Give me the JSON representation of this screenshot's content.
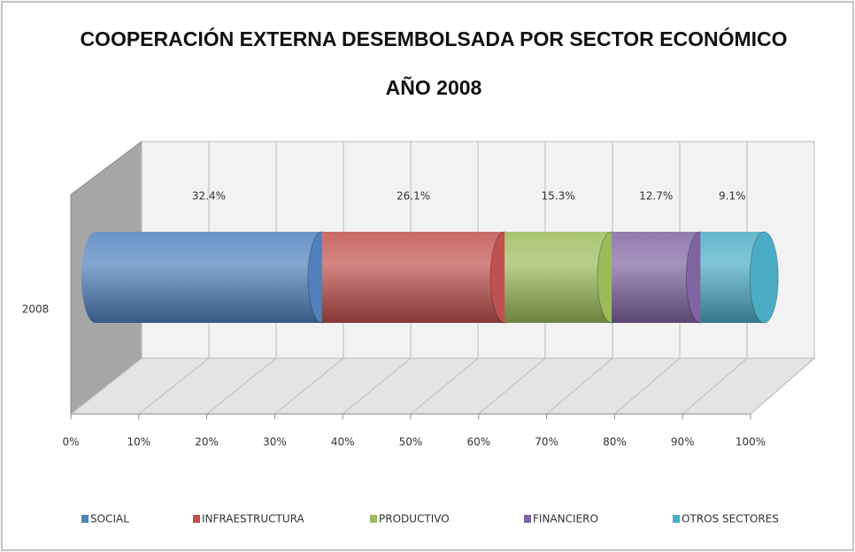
{
  "chart_data": {
    "type": "bar",
    "orientation": "horizontal",
    "stacked": true,
    "title": "COOPERACIÓN EXTERNA DESEMBOLSADA POR SECTOR ECONÓMICO",
    "subtitle": "AÑO 2008",
    "categories": [
      "2008"
    ],
    "series": [
      {
        "name": "SOCIAL",
        "color": "#4f81bd",
        "values": [
          32.4
        ],
        "value_labels": [
          "32.4%"
        ]
      },
      {
        "name": "INFRAESTRUCTURA",
        "color": "#c0504d",
        "values": [
          26.1
        ],
        "value_labels": [
          "26.1%"
        ]
      },
      {
        "name": "PRODUCTIVO",
        "color": "#9bbb59",
        "values": [
          15.3
        ],
        "value_labels": [
          "15.3%"
        ]
      },
      {
        "name": "FINANCIERO",
        "color": "#8064a2",
        "values": [
          12.7
        ],
        "value_labels": [
          "12.7%"
        ]
      },
      {
        "name": "OTROS SECTORES",
        "color": "#4bacc6",
        "values": [
          9.1
        ],
        "value_labels": [
          "9.1%"
        ]
      }
    ],
    "xlim": [
      0,
      100
    ],
    "xticks": [
      {
        "value": 0,
        "label": "0%"
      },
      {
        "value": 10,
        "label": "10%"
      },
      {
        "value": 20,
        "label": "20%"
      },
      {
        "value": 30,
        "label": "30%"
      },
      {
        "value": 40,
        "label": "40%"
      },
      {
        "value": 50,
        "label": "50%"
      },
      {
        "value": 60,
        "label": "60%"
      },
      {
        "value": 70,
        "label": "70%"
      },
      {
        "value": 80,
        "label": "80%"
      },
      {
        "value": 90,
        "label": "90%"
      },
      {
        "value": 100,
        "label": "100%"
      }
    ],
    "grid": true,
    "legend": "bottom"
  }
}
